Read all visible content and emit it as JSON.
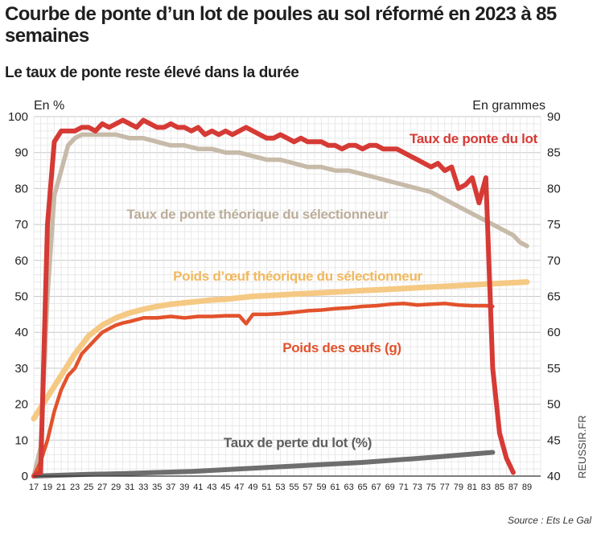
{
  "title": "Courbe de ponte d’un lot de poules au sol réformé en 2023 à 85 semaines",
  "subtitle": "Le taux de ponte reste élevé dans la durée",
  "source": "Source : Ets Le Gal",
  "watermark": "REUSSIR.FR",
  "colors": {
    "taux_ponte_lot": "#d63a35",
    "taux_ponte_theorique": "#c7baa8",
    "poids_oeuf_theorique": "#f5c983",
    "poids_oeufs": "#e2522c",
    "taux_perte": "#6e6e6e",
    "grid_fine": "#e4e4e4",
    "grid_major": "#c8c8c8"
  },
  "chart_data": {
    "type": "line",
    "title": "Courbe de ponte d’un lot de poules au sol réformé en 2023 à 85 semaines",
    "subtitle": "Le taux de ponte reste élevé dans la durée",
    "ylabel": "En %",
    "y2label": "En grammes",
    "xlim": [
      17,
      91
    ],
    "ylim": [
      0,
      100
    ],
    "y2lim": [
      40,
      90
    ],
    "grid": true,
    "xticks": [
      "17",
      "19",
      "21",
      "23",
      "25",
      "27",
      "29",
      "31",
      "33",
      "35",
      "37",
      "39",
      "41",
      "43",
      "45",
      "47",
      "49",
      "51",
      "53",
      "55",
      "57",
      "59",
      "61",
      "63",
      "65",
      "67",
      "69",
      "71",
      "73",
      "75",
      "77",
      "79",
      "81",
      "83",
      "85",
      "87",
      "89"
    ],
    "yticks": [
      "0",
      "10",
      "20",
      "30",
      "40",
      "50",
      "60",
      "70",
      "80",
      "90",
      "100"
    ],
    "y2ticks": [
      "40",
      "45",
      "50",
      "55",
      "60",
      "65",
      "70",
      "75",
      "80",
      "85",
      "90"
    ],
    "series": [
      {
        "name": "Taux de ponte du lot",
        "axis": "left",
        "points": [
          [
            17,
            0
          ],
          [
            18,
            1
          ],
          [
            19,
            70
          ],
          [
            20,
            93
          ],
          [
            21,
            96
          ],
          [
            22,
            96
          ],
          [
            23,
            96
          ],
          [
            24,
            97
          ],
          [
            25,
            97
          ],
          [
            26,
            96
          ],
          [
            27,
            98
          ],
          [
            28,
            97
          ],
          [
            29,
            98
          ],
          [
            30,
            99
          ],
          [
            31,
            98
          ],
          [
            32,
            97
          ],
          [
            33,
            99
          ],
          [
            34,
            98
          ],
          [
            35,
            97
          ],
          [
            36,
            97
          ],
          [
            37,
            98
          ],
          [
            38,
            97
          ],
          [
            39,
            97
          ],
          [
            40,
            96
          ],
          [
            41,
            97
          ],
          [
            42,
            95
          ],
          [
            43,
            96
          ],
          [
            44,
            95
          ],
          [
            45,
            96
          ],
          [
            46,
            95
          ],
          [
            47,
            96
          ],
          [
            48,
            97
          ],
          [
            49,
            96
          ],
          [
            50,
            95
          ],
          [
            51,
            94
          ],
          [
            52,
            94
          ],
          [
            53,
            95
          ],
          [
            54,
            94
          ],
          [
            55,
            93
          ],
          [
            56,
            94
          ],
          [
            57,
            93
          ],
          [
            58,
            93
          ],
          [
            59,
            93
          ],
          [
            60,
            92
          ],
          [
            61,
            92
          ],
          [
            62,
            91
          ],
          [
            63,
            92
          ],
          [
            64,
            92
          ],
          [
            65,
            91
          ],
          [
            66,
            92
          ],
          [
            67,
            92
          ],
          [
            68,
            91
          ],
          [
            69,
            91
          ],
          [
            70,
            91
          ],
          [
            71,
            90
          ],
          [
            72,
            89
          ],
          [
            73,
            88
          ],
          [
            74,
            87
          ],
          [
            75,
            86
          ],
          [
            76,
            87
          ],
          [
            77,
            85
          ],
          [
            78,
            86
          ],
          [
            79,
            80
          ],
          [
            80,
            81
          ],
          [
            81,
            83
          ],
          [
            82,
            76
          ],
          [
            83,
            83
          ],
          [
            84,
            30
          ],
          [
            85,
            12
          ],
          [
            86,
            5
          ],
          [
            87,
            1
          ]
        ]
      },
      {
        "name": "Taux de ponte théorique du sélectionneur",
        "axis": "left",
        "points": [
          [
            17,
            0
          ],
          [
            18,
            8
          ],
          [
            19,
            50
          ],
          [
            20,
            78
          ],
          [
            21,
            85
          ],
          [
            22,
            92
          ],
          [
            23,
            94
          ],
          [
            24,
            95
          ],
          [
            25,
            95
          ],
          [
            27,
            95
          ],
          [
            29,
            95
          ],
          [
            31,
            94
          ],
          [
            33,
            94
          ],
          [
            35,
            93
          ],
          [
            37,
            92
          ],
          [
            39,
            92
          ],
          [
            41,
            91
          ],
          [
            43,
            91
          ],
          [
            45,
            90
          ],
          [
            47,
            90
          ],
          [
            49,
            89
          ],
          [
            51,
            88
          ],
          [
            53,
            88
          ],
          [
            55,
            87
          ],
          [
            57,
            86
          ],
          [
            59,
            86
          ],
          [
            61,
            85
          ],
          [
            63,
            85
          ],
          [
            65,
            84
          ],
          [
            67,
            83
          ],
          [
            69,
            82
          ],
          [
            71,
            81
          ],
          [
            73,
            80
          ],
          [
            75,
            79
          ],
          [
            77,
            77
          ],
          [
            79,
            75
          ],
          [
            81,
            73
          ],
          [
            83,
            71
          ],
          [
            85,
            69
          ],
          [
            87,
            67
          ],
          [
            88,
            65
          ],
          [
            89,
            64
          ]
        ]
      },
      {
        "name": "Poids d’œuf théorique du sélectionneur",
        "axis": "right",
        "points": [
          [
            17,
            48
          ],
          [
            19,
            51
          ],
          [
            21,
            54
          ],
          [
            23,
            57
          ],
          [
            25,
            59.5
          ],
          [
            27,
            61
          ],
          [
            29,
            62
          ],
          [
            31,
            62.7
          ],
          [
            33,
            63.2
          ],
          [
            35,
            63.6
          ],
          [
            37,
            63.9
          ],
          [
            39,
            64.1
          ],
          [
            41,
            64.3
          ],
          [
            43,
            64.5
          ],
          [
            45,
            64.6
          ],
          [
            47,
            64.8
          ],
          [
            49,
            65
          ],
          [
            51,
            65.1
          ],
          [
            53,
            65.2
          ],
          [
            55,
            65.3
          ],
          [
            57,
            65.4
          ],
          [
            59,
            65.5
          ],
          [
            61,
            65.6
          ],
          [
            63,
            65.7
          ],
          [
            65,
            65.8
          ],
          [
            67,
            65.9
          ],
          [
            69,
            66
          ],
          [
            71,
            66.1
          ],
          [
            73,
            66.2
          ],
          [
            75,
            66.3
          ],
          [
            77,
            66.4
          ],
          [
            79,
            66.5
          ],
          [
            81,
            66.6
          ],
          [
            83,
            66.7
          ],
          [
            85,
            66.8
          ],
          [
            87,
            66.9
          ],
          [
            89,
            67
          ]
        ]
      },
      {
        "name": "Poids des œufs (g)",
        "axis": "right",
        "points": [
          [
            17,
            40
          ],
          [
            18,
            42
          ],
          [
            19,
            45
          ],
          [
            20,
            49
          ],
          [
            21,
            52
          ],
          [
            22,
            54
          ],
          [
            23,
            55
          ],
          [
            24,
            57
          ],
          [
            25,
            58
          ],
          [
            26,
            59
          ],
          [
            27,
            60
          ],
          [
            28,
            60.5
          ],
          [
            29,
            61
          ],
          [
            30,
            61.3
          ],
          [
            31,
            61.5
          ],
          [
            33,
            62
          ],
          [
            35,
            62
          ],
          [
            37,
            62.2
          ],
          [
            39,
            62
          ],
          [
            41,
            62.2
          ],
          [
            43,
            62.2
          ],
          [
            45,
            62.3
          ],
          [
            47,
            62.3
          ],
          [
            48,
            61.2
          ],
          [
            49,
            62.5
          ],
          [
            51,
            62.5
          ],
          [
            53,
            62.6
          ],
          [
            55,
            62.8
          ],
          [
            57,
            63
          ],
          [
            59,
            63.1
          ],
          [
            61,
            63.3
          ],
          [
            63,
            63.4
          ],
          [
            65,
            63.6
          ],
          [
            67,
            63.7
          ],
          [
            69,
            63.9
          ],
          [
            71,
            64
          ],
          [
            73,
            63.8
          ],
          [
            75,
            63.9
          ],
          [
            77,
            64
          ],
          [
            79,
            63.8
          ],
          [
            81,
            63.7
          ],
          [
            83,
            63.7
          ],
          [
            84,
            63.6
          ]
        ]
      },
      {
        "name": "Taux de perte du lot (%)",
        "axis": "left",
        "points": [
          [
            17,
            0
          ],
          [
            20,
            0.2
          ],
          [
            25,
            0.5
          ],
          [
            30,
            0.7
          ],
          [
            35,
            1
          ],
          [
            40,
            1.3
          ],
          [
            45,
            1.8
          ],
          [
            50,
            2.3
          ],
          [
            55,
            2.8
          ],
          [
            60,
            3.3
          ],
          [
            65,
            3.8
          ],
          [
            70,
            4.5
          ],
          [
            75,
            5.2
          ],
          [
            80,
            6
          ],
          [
            84,
            6.6
          ]
        ]
      }
    ],
    "labels": [
      {
        "series": 0,
        "text": "Taux de ponte du lot"
      },
      {
        "series": 1,
        "text": "Taux de ponte théorique du sélectionneur"
      },
      {
        "series": 2,
        "text": "Poids d’œuf théorique du sélectionneur"
      },
      {
        "series": 3,
        "text": "Poids des œufs (g)"
      },
      {
        "series": 4,
        "text": "Taux de perte du lot (%)"
      }
    ]
  }
}
